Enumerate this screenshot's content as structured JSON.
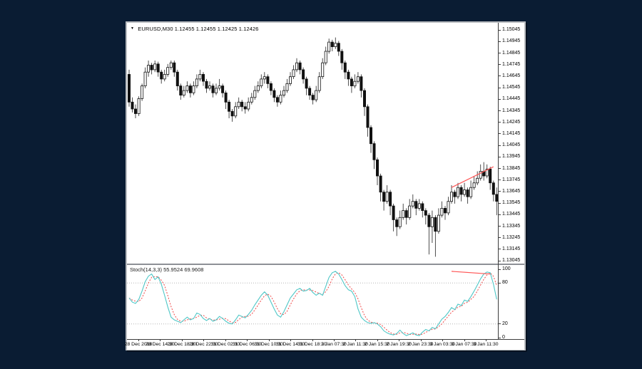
{
  "window": {
    "title_symbol": "EURUSD,M30",
    "title_ohlc": "1.12455 1.12455 1.12425 1.12426",
    "indicator_label": "Stoch(14,3,3)",
    "indicator_values": "55.9524 69.9608"
  },
  "colors": {
    "desktop_bg": "#0a1c33",
    "chart_bg": "#ffffff",
    "candle_up_fill": "#ffffff",
    "candle_down_fill": "#111111",
    "candle_outline": "#111111",
    "wick": "#3a3a3a",
    "stoch_k_line": "#4ec7c7",
    "stoch_d_line": "#f04848",
    "trendline": "#ff5555",
    "level_line": "#b5b5b5",
    "axis_text": "#000000"
  },
  "price_axis": {
    "labels": [
      "1.15045",
      "1.14945",
      "1.14845",
      "1.14745",
      "1.14645",
      "1.14545",
      "1.14445",
      "1.14345",
      "1.14245",
      "1.14145",
      "1.14045",
      "1.13945",
      "1.13845",
      "1.13745",
      "1.13645",
      "1.13545",
      "1.13445",
      "1.13345",
      "1.13245",
      "1.13145",
      "1.13045"
    ]
  },
  "stoch_axis": {
    "labels": [
      "100",
      "80",
      "20",
      "0"
    ],
    "levels": [
      100,
      80,
      20,
      0
    ]
  },
  "time_axis": {
    "labels": [
      "28 Dec 2018",
      "28 Dec 14:30",
      "28 Dec 18:30",
      "28 Dec 22:30",
      "31 Dec 02:30",
      "31 Dec 06:30",
      "31 Dec 10:30",
      "31 Dec 14:30",
      "31 Dec 18:30",
      "2 Jan 07:30",
      "2 Jan 11:30",
      "2 Jan 15:30",
      "2 Jan 19:30",
      "2 Jan 23:30",
      "3 Jan 03:30",
      "3 Jan 07:30",
      "3 Jan 11:30"
    ]
  },
  "chart_data": {
    "type": "candlestick+stochastic",
    "symbol": "EURUSD",
    "timeframe": "M30",
    "price_range": [
      1.13021,
      1.15107
    ],
    "price_grid_step": 0.001,
    "candles": [
      [
        1.1466,
        1.147,
        1.1438,
        1.1442
      ],
      [
        1.1442,
        1.1446,
        1.1433,
        1.1436
      ],
      [
        1.1436,
        1.144,
        1.1428,
        1.1432
      ],
      [
        1.1432,
        1.1447,
        1.143,
        1.1445
      ],
      [
        1.1445,
        1.1458,
        1.1443,
        1.1456
      ],
      [
        1.1456,
        1.1472,
        1.1454,
        1.1468
      ],
      [
        1.1468,
        1.1478,
        1.1464,
        1.1474
      ],
      [
        1.1474,
        1.1476,
        1.1466,
        1.147
      ],
      [
        1.147,
        1.1478,
        1.1468,
        1.1475
      ],
      [
        1.1475,
        1.1477,
        1.1464,
        1.1468
      ],
      [
        1.1468,
        1.147,
        1.1458,
        1.1462
      ],
      [
        1.1462,
        1.147,
        1.146,
        1.1466
      ],
      [
        1.1466,
        1.1475,
        1.1464,
        1.1472
      ],
      [
        1.1472,
        1.1478,
        1.147,
        1.1476
      ],
      [
        1.1476,
        1.1478,
        1.1464,
        1.1468
      ],
      [
        1.1468,
        1.147,
        1.1452,
        1.1456
      ],
      [
        1.1456,
        1.1458,
        1.1444,
        1.1448
      ],
      [
        1.1448,
        1.1456,
        1.1446,
        1.1452
      ],
      [
        1.1452,
        1.146,
        1.145,
        1.1456
      ],
      [
        1.1456,
        1.1458,
        1.1446,
        1.145
      ],
      [
        1.145,
        1.146,
        1.1448,
        1.1456
      ],
      [
        1.1456,
        1.1466,
        1.1454,
        1.1462
      ],
      [
        1.1462,
        1.147,
        1.146,
        1.1466
      ],
      [
        1.1466,
        1.1468,
        1.1456,
        1.146
      ],
      [
        1.146,
        1.1462,
        1.145,
        1.1454
      ],
      [
        1.1454,
        1.146,
        1.1452,
        1.1456
      ],
      [
        1.1456,
        1.1458,
        1.1446,
        1.145
      ],
      [
        1.145,
        1.1458,
        1.1448,
        1.1454
      ],
      [
        1.1454,
        1.1462,
        1.1452,
        1.1456
      ],
      [
        1.1456,
        1.1458,
        1.1446,
        1.145
      ],
      [
        1.145,
        1.1452,
        1.1436,
        1.1442
      ],
      [
        1.1442,
        1.1444,
        1.1428,
        1.1434
      ],
      [
        1.1434,
        1.1436,
        1.1425,
        1.143
      ],
      [
        1.143,
        1.1442,
        1.1428,
        1.1438
      ],
      [
        1.1438,
        1.1446,
        1.1436,
        1.1442
      ],
      [
        1.1442,
        1.1444,
        1.1434,
        1.1438
      ],
      [
        1.1438,
        1.1442,
        1.1432,
        1.1436
      ],
      [
        1.1436,
        1.1446,
        1.1434,
        1.1442
      ],
      [
        1.1442,
        1.145,
        1.144,
        1.1446
      ],
      [
        1.1446,
        1.1456,
        1.1444,
        1.1452
      ],
      [
        1.1452,
        1.146,
        1.145,
        1.1456
      ],
      [
        1.1456,
        1.1466,
        1.1454,
        1.1462
      ],
      [
        1.1462,
        1.1468,
        1.1458,
        1.1464
      ],
      [
        1.1464,
        1.1466,
        1.1454,
        1.1458
      ],
      [
        1.1458,
        1.146,
        1.1448,
        1.1452
      ],
      [
        1.1452,
        1.1454,
        1.1442,
        1.1446
      ],
      [
        1.1446,
        1.1448,
        1.1438,
        1.1442
      ],
      [
        1.1442,
        1.1452,
        1.144,
        1.1448
      ],
      [
        1.1448,
        1.1456,
        1.1446,
        1.1452
      ],
      [
        1.1452,
        1.1462,
        1.145,
        1.1458
      ],
      [
        1.1458,
        1.1468,
        1.1456,
        1.1464
      ],
      [
        1.1464,
        1.1474,
        1.1462,
        1.147
      ],
      [
        1.147,
        1.148,
        1.1468,
        1.1476
      ],
      [
        1.1476,
        1.1478,
        1.1466,
        1.147
      ],
      [
        1.147,
        1.1472,
        1.1458,
        1.1462
      ],
      [
        1.1462,
        1.1464,
        1.1448,
        1.1454
      ],
      [
        1.1454,
        1.1456,
        1.1444,
        1.1448
      ],
      [
        1.1448,
        1.145,
        1.144,
        1.1444
      ],
      [
        1.1444,
        1.1456,
        1.1442,
        1.1452
      ],
      [
        1.1452,
        1.1468,
        1.145,
        1.1464
      ],
      [
        1.1464,
        1.148,
        1.1462,
        1.1476
      ],
      [
        1.1476,
        1.149,
        1.1474,
        1.1486
      ],
      [
        1.1486,
        1.1497,
        1.1484,
        1.1494
      ],
      [
        1.1494,
        1.1496,
        1.1486,
        1.149
      ],
      [
        1.149,
        1.1498,
        1.1488,
        1.1493
      ],
      [
        1.1493,
        1.1495,
        1.1482,
        1.1486
      ],
      [
        1.1486,
        1.1488,
        1.147,
        1.1476
      ],
      [
        1.1476,
        1.1478,
        1.1462,
        1.1468
      ],
      [
        1.1468,
        1.147,
        1.1456,
        1.1462
      ],
      [
        1.1462,
        1.1464,
        1.145,
        1.1456
      ],
      [
        1.1456,
        1.1466,
        1.1454,
        1.146
      ],
      [
        1.146,
        1.1468,
        1.1458,
        1.1464
      ],
      [
        1.1464,
        1.1466,
        1.1446,
        1.1452
      ],
      [
        1.1452,
        1.1454,
        1.143,
        1.1438
      ],
      [
        1.1438,
        1.144,
        1.1412,
        1.142
      ],
      [
        1.142,
        1.1422,
        1.1398,
        1.1406
      ],
      [
        1.1406,
        1.1408,
        1.1384,
        1.1392
      ],
      [
        1.1392,
        1.1394,
        1.137,
        1.1378
      ],
      [
        1.1378,
        1.138,
        1.1356,
        1.1364
      ],
      [
        1.1364,
        1.1366,
        1.1348,
        1.1356
      ],
      [
        1.1356,
        1.137,
        1.1354,
        1.1364
      ],
      [
        1.1364,
        1.1366,
        1.1344,
        1.1352
      ],
      [
        1.1352,
        1.1354,
        1.133,
        1.134
      ],
      [
        1.134,
        1.1342,
        1.1326,
        1.1334
      ],
      [
        1.1334,
        1.1348,
        1.1332,
        1.1342
      ],
      [
        1.1342,
        1.1354,
        1.134,
        1.1348
      ],
      [
        1.1348,
        1.135,
        1.1336,
        1.1342
      ],
      [
        1.1342,
        1.1358,
        1.134,
        1.1352
      ],
      [
        1.1352,
        1.1362,
        1.135,
        1.1356
      ],
      [
        1.1356,
        1.1358,
        1.1344,
        1.135
      ],
      [
        1.135,
        1.1358,
        1.1348,
        1.1354
      ],
      [
        1.1354,
        1.1356,
        1.1342,
        1.1348
      ],
      [
        1.1348,
        1.135,
        1.1336,
        1.1344
      ],
      [
        1.1344,
        1.1346,
        1.131,
        1.1334
      ],
      [
        1.1334,
        1.1348,
        1.132,
        1.1342
      ],
      [
        1.1342,
        1.1344,
        1.1308,
        1.133
      ],
      [
        1.133,
        1.135,
        1.1328,
        1.1344
      ],
      [
        1.1344,
        1.1356,
        1.1342,
        1.135
      ],
      [
        1.135,
        1.1352,
        1.134,
        1.1346
      ],
      [
        1.1346,
        1.136,
        1.1344,
        1.1356
      ],
      [
        1.1356,
        1.137,
        1.1354,
        1.1364
      ],
      [
        1.1364,
        1.1366,
        1.1354,
        1.136
      ],
      [
        1.136,
        1.1372,
        1.1358,
        1.1368
      ],
      [
        1.1368,
        1.137,
        1.1356,
        1.1362
      ],
      [
        1.1362,
        1.1372,
        1.136,
        1.1366
      ],
      [
        1.1366,
        1.1368,
        1.1354,
        1.136
      ],
      [
        1.136,
        1.1374,
        1.1358,
        1.1368
      ],
      [
        1.1368,
        1.1378,
        1.1366,
        1.1372
      ],
      [
        1.1372,
        1.1382,
        1.137,
        1.1376
      ],
      [
        1.1376,
        1.1388,
        1.1374,
        1.1382
      ],
      [
        1.1382,
        1.139,
        1.1374,
        1.1378
      ],
      [
        1.1378,
        1.1388,
        1.1376,
        1.1384
      ],
      [
        1.1384,
        1.1386,
        1.1366,
        1.1372
      ],
      [
        1.1372,
        1.1374,
        1.1356,
        1.1362
      ],
      [
        1.1362,
        1.1368,
        1.1344,
        1.1356
      ]
    ],
    "stochastic": {
      "k_period": 14,
      "d_period": 3,
      "slowing": 3,
      "k_label_value": "55.9524",
      "d_label_value": "69.9608",
      "levels": [
        80,
        20
      ],
      "k": [
        58,
        52,
        50,
        56,
        68,
        82,
        90,
        93,
        85,
        89,
        78,
        62,
        45,
        30,
        26,
        24,
        22,
        26,
        30,
        26,
        28,
        36,
        34,
        28,
        25,
        28,
        24,
        26,
        31,
        28,
        24,
        21,
        20,
        26,
        33,
        31,
        29,
        34,
        40,
        48,
        55,
        62,
        67,
        62,
        52,
        42,
        33,
        30,
        38,
        48,
        58,
        64,
        70,
        72,
        68,
        69,
        72,
        66,
        62,
        65,
        62,
        75,
        88,
        95,
        97,
        93,
        85,
        76,
        70,
        68,
        60,
        42,
        30,
        25,
        22,
        21,
        22,
        20,
        16,
        10,
        7,
        5,
        4,
        6,
        11,
        6,
        3,
        5,
        7,
        4,
        3,
        8,
        12,
        10,
        15,
        13,
        20,
        27,
        31,
        37,
        44,
        41,
        49,
        47,
        55,
        53,
        60,
        68,
        77,
        86,
        93,
        96,
        95,
        78,
        56
      ]
    },
    "trendlines": {
      "price": {
        "i1": 100,
        "p1": 1.1368,
        "i2": 113,
        "p2": 1.1386
      },
      "stoch": {
        "i1": 100,
        "v1": 97,
        "i2": 112,
        "v2": 93
      }
    }
  }
}
